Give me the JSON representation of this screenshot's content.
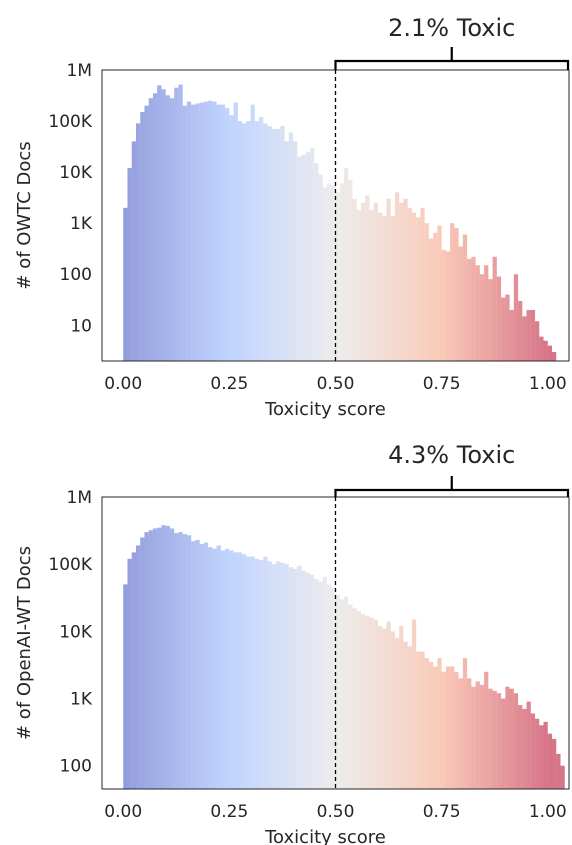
{
  "chart_data": [
    {
      "type": "bar",
      "title": "",
      "xlabel": "Toxicity score",
      "ylabel": "# of OWTC Docs",
      "y_scale": "log",
      "xlim": [
        -0.05,
        1.05
      ],
      "ylim": [
        2,
        1000000
      ],
      "xticks": [
        0,
        0.25,
        0.5,
        0.75,
        1.0
      ],
      "xtick_labels": [
        "0.00",
        "0.25",
        "0.50",
        "0.75",
        "1.00"
      ],
      "yticks": [
        10,
        100,
        1000,
        10000,
        100000,
        1000000
      ],
      "ytick_labels": [
        "10",
        "100",
        "1K",
        "10K",
        "100K",
        "1M"
      ],
      "threshold": 0.5,
      "annotation": "2.1% Toxic",
      "bin_width": 0.01,
      "bin_start": 0.0,
      "values": [
        2000,
        12000,
        40000,
        90000,
        150000,
        200000,
        280000,
        350000,
        500000,
        420000,
        320000,
        280000,
        450000,
        520000,
        200000,
        240000,
        210000,
        220000,
        230000,
        240000,
        250000,
        240000,
        210000,
        210000,
        180000,
        130000,
        230000,
        100000,
        90000,
        100000,
        210000,
        100000,
        120000,
        90000,
        80000,
        70000,
        70000,
        80000,
        40000,
        60000,
        40000,
        20000,
        22000,
        25000,
        30000,
        15000,
        9000,
        5000,
        6000,
        5500,
        4000,
        6000,
        12000,
        7000,
        3000,
        1800,
        2500,
        3500,
        1800,
        2500,
        1600,
        1400,
        3000,
        1400,
        4000,
        2500,
        3000,
        2000,
        1600,
        1300,
        2000,
        1000,
        500,
        650,
        900,
        300,
        280,
        1000,
        800,
        350,
        600,
        200,
        220,
        150,
        100,
        150,
        80,
        220,
        90,
        35,
        40,
        20,
        100,
        30,
        15,
        20,
        20,
        12,
        6,
        5,
        4,
        3,
        2
      ],
      "colormap": "coolwarm"
    },
    {
      "type": "bar",
      "title": "",
      "xlabel": "Toxicity score",
      "ylabel": "# of OpenAI-WT Docs",
      "y_scale": "log",
      "xlim": [
        -0.05,
        1.05
      ],
      "ylim": [
        45,
        1000000
      ],
      "xticks": [
        0,
        0.25,
        0.5,
        0.75,
        1.0
      ],
      "xtick_labels": [
        "0.00",
        "0.25",
        "0.50",
        "0.75",
        "1.00"
      ],
      "yticks": [
        100,
        1000,
        10000,
        100000,
        1000000
      ],
      "ytick_labels": [
        "100",
        "1K",
        "10K",
        "100K",
        "1M"
      ],
      "threshold": 0.5,
      "annotation": "4.3% Toxic",
      "bin_width": 0.01,
      "bin_start": 0.0,
      "values": [
        50000,
        120000,
        150000,
        190000,
        250000,
        300000,
        320000,
        340000,
        350000,
        380000,
        370000,
        340000,
        290000,
        300000,
        280000,
        270000,
        220000,
        230000,
        200000,
        210000,
        180000,
        170000,
        190000,
        160000,
        170000,
        160000,
        150000,
        150000,
        140000,
        130000,
        130000,
        120000,
        115000,
        130000,
        110000,
        100000,
        110000,
        105000,
        100000,
        90000,
        85000,
        95000,
        80000,
        75000,
        70000,
        60000,
        55000,
        65000,
        50000,
        45000,
        35000,
        30000,
        33000,
        25000,
        22000,
        20000,
        18000,
        17000,
        16000,
        15000,
        12000,
        11000,
        14000,
        10000,
        8000,
        12000,
        7000,
        6000,
        15000,
        5000,
        5000,
        4000,
        3500,
        3000,
        4000,
        2500,
        3000,
        3000,
        2500,
        2000,
        4000,
        2000,
        1500,
        1800,
        1600,
        2500,
        1400,
        1300,
        1200,
        1000,
        1500,
        1400,
        1200,
        800,
        700,
        900,
        600,
        500,
        400,
        450,
        300,
        250,
        150,
        100
      ]
    }
  ]
}
